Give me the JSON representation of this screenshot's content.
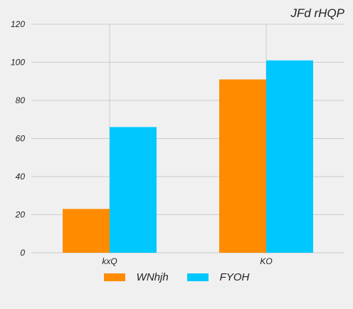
{
  "chart_data": {
    "type": "bar",
    "title": "JFd rHQP",
    "categories": [
      "kxQ",
      "KO"
    ],
    "series": [
      {
        "name": "WNhjh",
        "values": [
          23,
          91
        ],
        "color": "#ff8c00"
      },
      {
        "name": "FYOH",
        "values": [
          66,
          101
        ],
        "color": "#00c8ff"
      }
    ],
    "ylim": [
      0,
      120
    ],
    "yticks": [
      0,
      20,
      40,
      60,
      80,
      100,
      120
    ],
    "grid": true,
    "legend_position": "bottom"
  }
}
